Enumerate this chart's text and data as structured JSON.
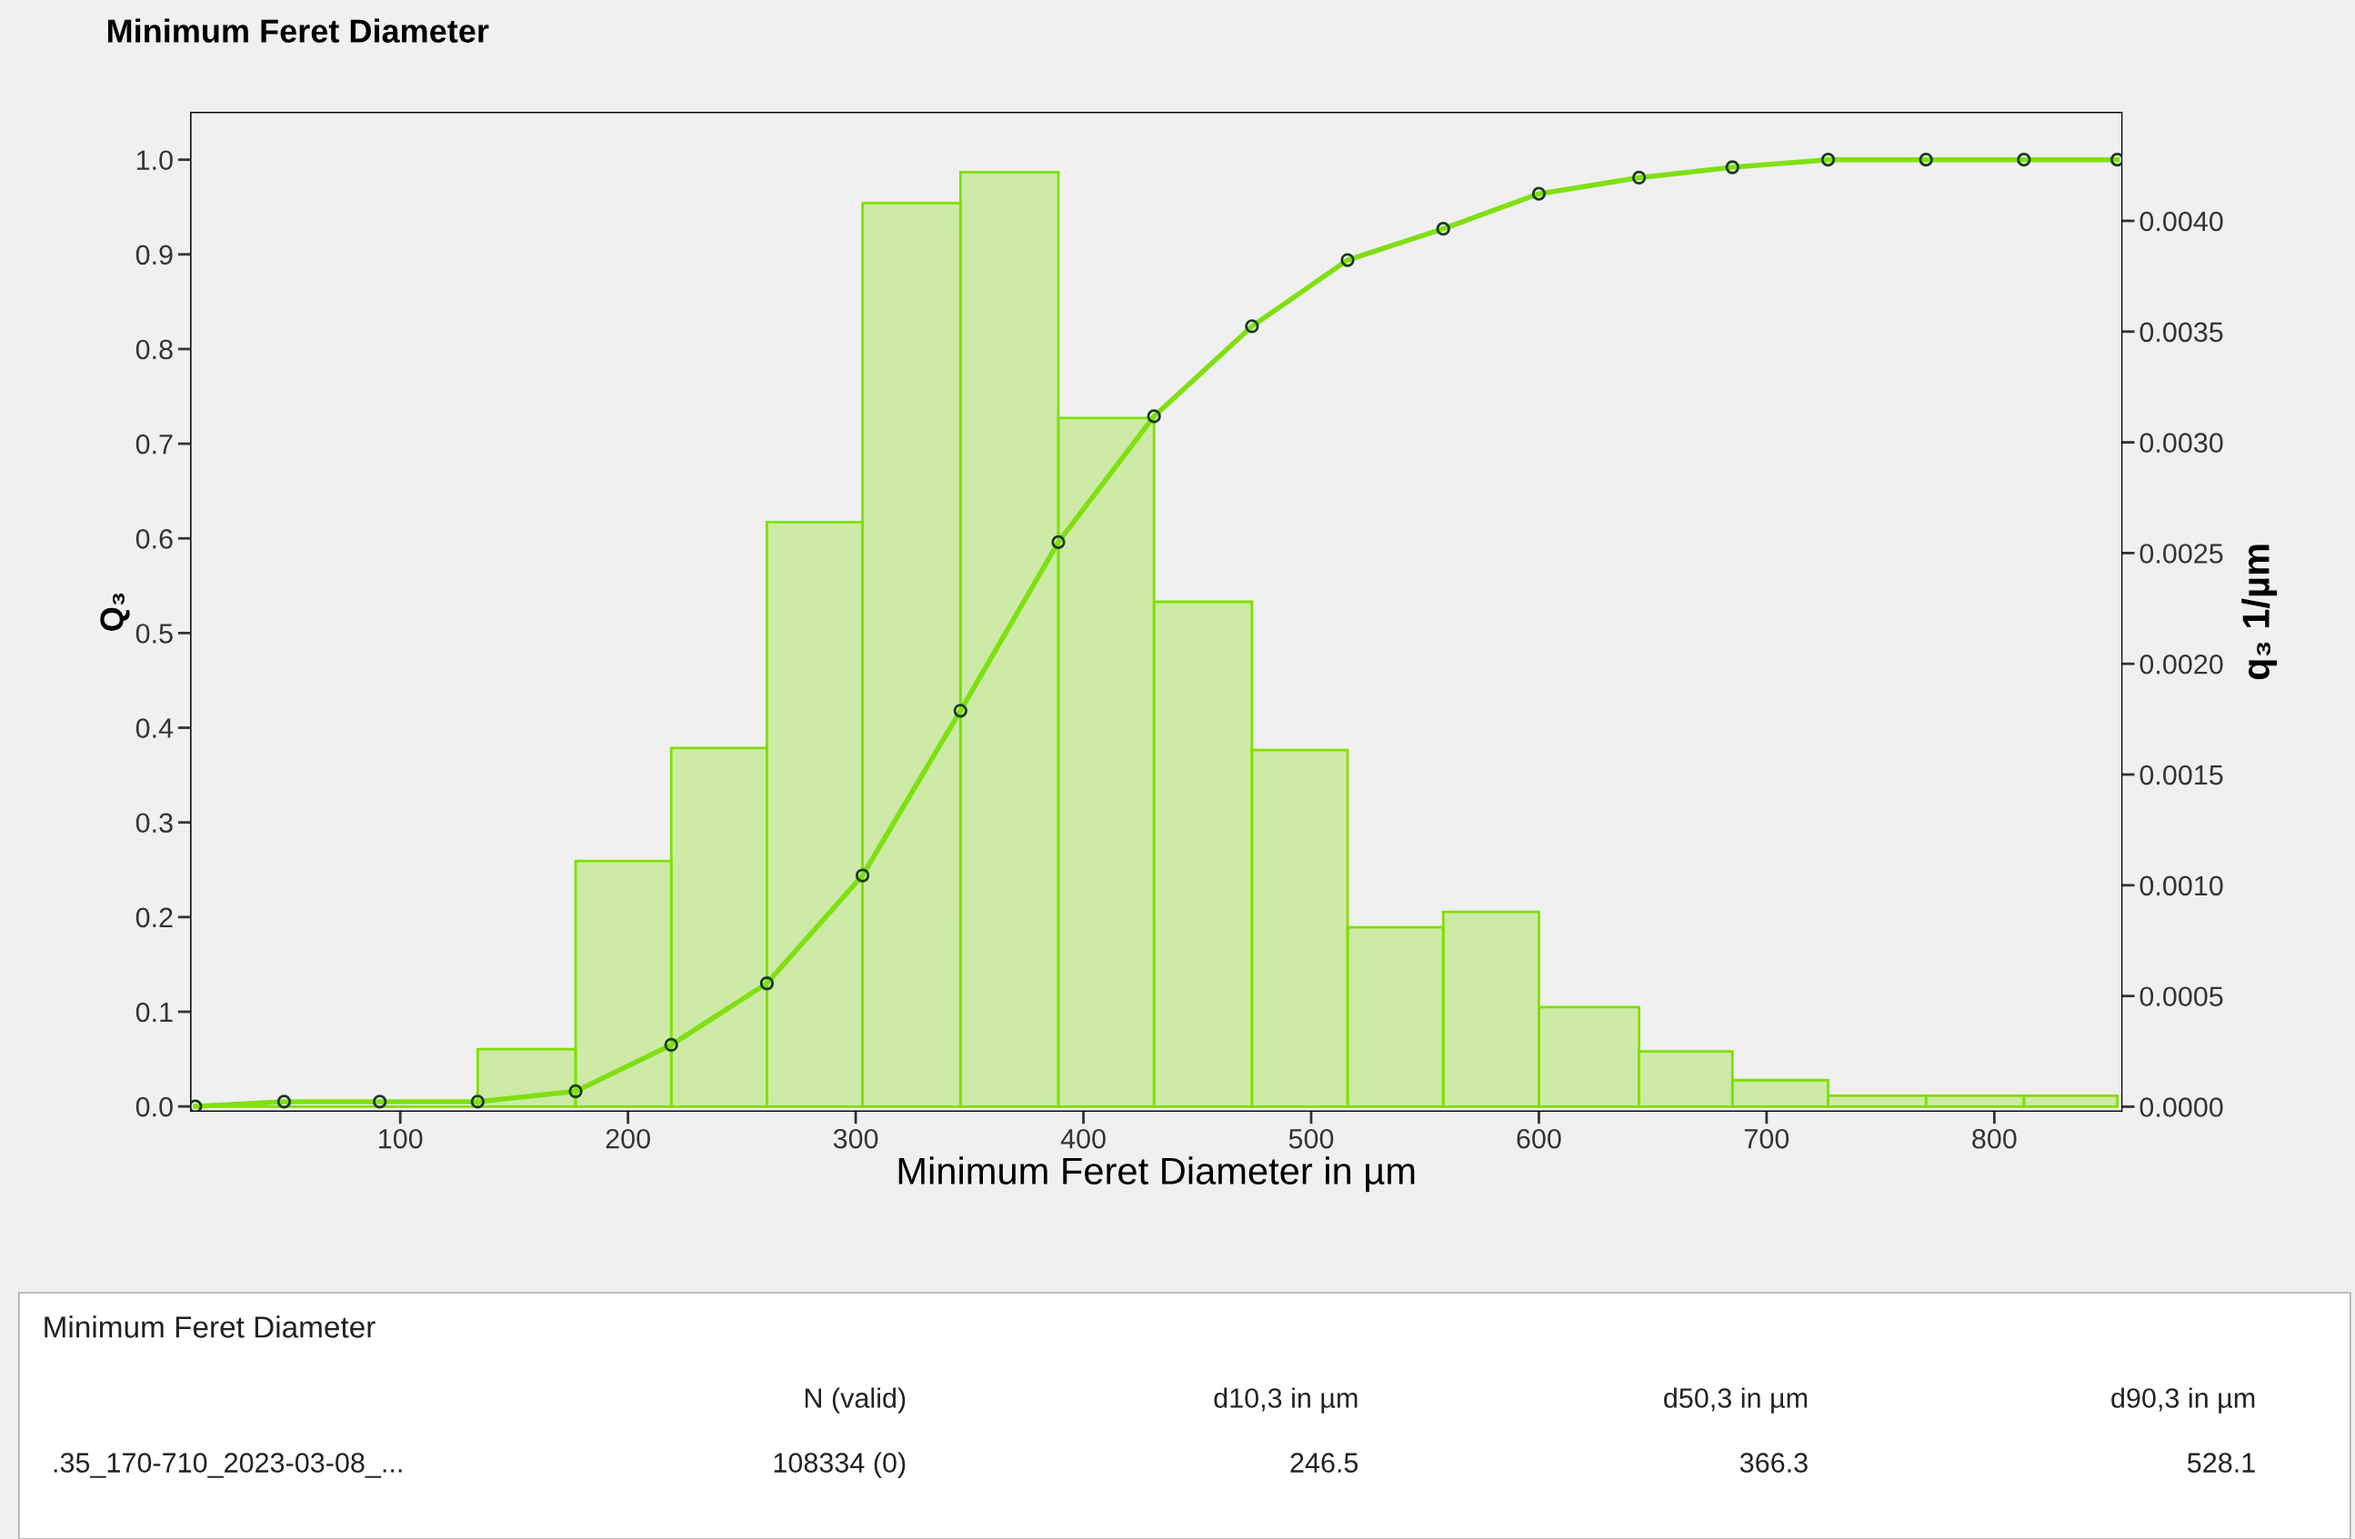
{
  "chart_data": {
    "type": "histogram",
    "title": "Minimum Feret Diameter",
    "xlabel": "Minimum Feret Diameter in µm",
    "ylabel": "Q₃",
    "y2label": "q₃ 1/µm",
    "series": [
      {
        "axis": "y2",
        "color": "#7fe000",
        "bins": [
          10,
          49,
          91,
          134,
          177,
          219,
          261,
          303,
          346,
          389,
          431,
          474,
          516,
          558,
          600,
          644,
          685,
          727,
          770,
          813,
          854
        ],
        "values": [
          0,
          0,
          0,
          0.00026,
          0.00111,
          0.00162,
          0.00264,
          0.00408,
          0.00422,
          0.00311,
          0.00228,
          0.00161,
          0.00081,
          0.00088,
          0.00045,
          0.00025,
          0.00012,
          5e-05,
          5e-05,
          5e-05
        ]
      },
      {
        "type": "line",
        "axis": "y",
        "color": "#80e010",
        "marker": "circle",
        "x": [
          10,
          49,
          91,
          134,
          177,
          219,
          261,
          303,
          346,
          389,
          431,
          474,
          516,
          558,
          600,
          644,
          685,
          727,
          770,
          813,
          854
        ],
        "values": [
          0,
          0.005,
          0.005,
          0.005,
          0.016,
          0.065,
          0.13,
          0.244,
          0.418,
          0.596,
          0.729,
          0.824,
          0.894,
          0.927,
          0.964,
          0.981,
          0.992,
          1.0,
          1.0,
          1.0,
          1.0
        ]
      }
    ],
    "xlim": [
      8,
      856
    ],
    "xticks": [
      100,
      200,
      300,
      400,
      500,
      600,
      700,
      800
    ],
    "ylim": [
      -0.005,
      1.05
    ],
    "yticks": [
      {
        "value": 0,
        "label": "0.0"
      },
      0.1,
      0.2,
      0.3,
      0.4,
      0.5,
      0.6,
      0.7,
      0.8,
      0.9,
      {
        "value": 1,
        "label": "1.0"
      }
    ],
    "y2lim": [
      -2e-05,
      0.00449
    ],
    "y2ticks": [
      {
        "value": 0,
        "label": "0.0000"
      },
      {
        "value": 0.0005,
        "label": "0.0005"
      },
      {
        "value": 0.001,
        "label": "0.0010"
      },
      {
        "value": 0.0015,
        "label": "0.0015"
      },
      {
        "value": 0.002,
        "label": "0.0020"
      },
      {
        "value": 0.0025,
        "label": "0.0025"
      },
      {
        "value": 0.003,
        "label": "0.0030"
      },
      {
        "value": 0.0035,
        "label": "0.0035"
      },
      {
        "value": 0.004,
        "label": "0.0040"
      }
    ],
    "grid": false,
    "legend": false,
    "annotations": [
      "Minimum Feret Diameter",
      "N (valid)",
      "d10,3 in µm",
      "d50,3 in µm",
      "d90,3 in µm",
      ".35_170-710_2023-03-08_...",
      "108334 (0)",
      "246.5",
      "366.3",
      "528.1"
    ]
  }
}
